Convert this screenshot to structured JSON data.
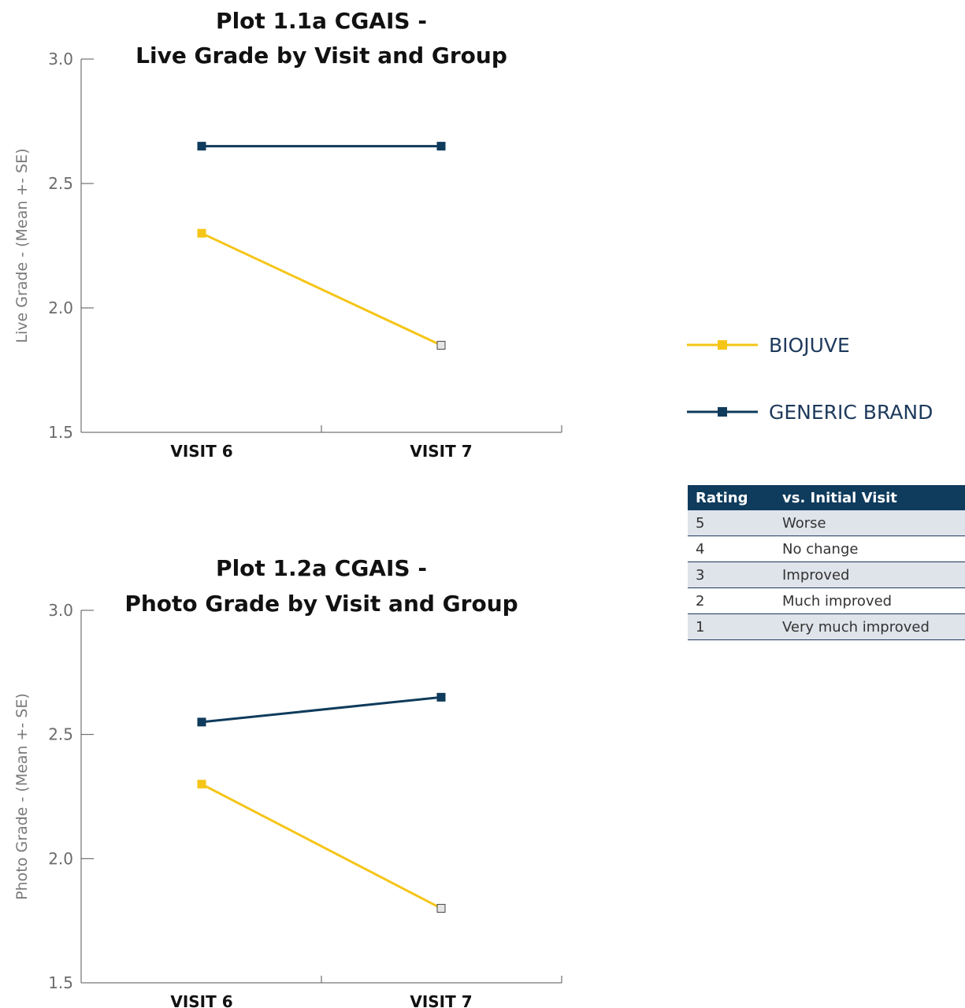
{
  "chart_data": [
    {
      "type": "line",
      "title_lines": [
        "Plot 1.1a CGAIS -",
        "Live Grade by Visit and Group"
      ],
      "ylabel": "Live Grade - (Mean +- SE)",
      "categories": [
        "VISIT 6",
        "VISIT 7"
      ],
      "ylim": [
        1.5,
        3.0
      ],
      "yticks": [
        "1.5",
        "2.0",
        "2.5",
        "3.0"
      ],
      "series": [
        {
          "name": "BIOJUVE",
          "values": [
            2.3,
            1.85
          ],
          "color": "#f5c518"
        },
        {
          "name": "GENERIC BRAND",
          "values": [
            2.65,
            2.65
          ],
          "color": "#0f3b5c"
        }
      ]
    },
    {
      "type": "line",
      "title_lines": [
        "Plot 1.2a CGAIS -",
        "Photo Grade by Visit and Group"
      ],
      "ylabel": "Photo Grade - (Mean +- SE)",
      "categories": [
        "VISIT 6",
        "VISIT 7"
      ],
      "ylim": [
        1.5,
        3.0
      ],
      "yticks": [
        "1.5",
        "2.0",
        "2.5",
        "3.0"
      ],
      "series": [
        {
          "name": "BIOJUVE",
          "values": [
            2.3,
            1.8
          ],
          "color": "#f5c518"
        },
        {
          "name": "GENERIC BRAND",
          "values": [
            2.55,
            2.65
          ],
          "color": "#0f3b5c"
        }
      ]
    }
  ],
  "legend": {
    "items": [
      {
        "label": "BIOJUVE",
        "color": "#f5c518"
      },
      {
        "label": "GENERIC BRAND",
        "color": "#0f3b5c"
      }
    ]
  },
  "rating_table": {
    "headers": [
      "Rating",
      "vs. Initial Visit"
    ],
    "rows": [
      [
        "5",
        "Worse"
      ],
      [
        "4",
        "No change"
      ],
      [
        "3",
        "Improved"
      ],
      [
        "2",
        "Much improved"
      ],
      [
        "1",
        "Very much improved"
      ]
    ]
  }
}
